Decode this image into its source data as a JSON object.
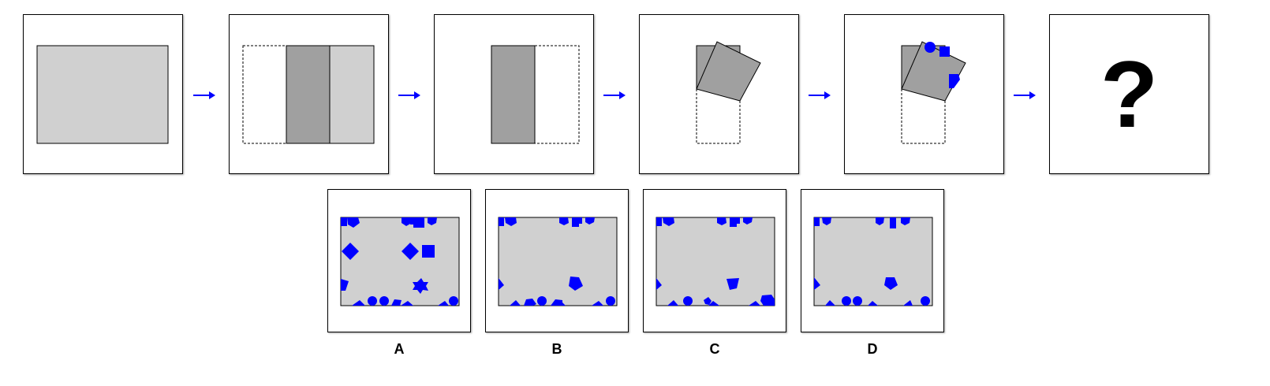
{
  "question_mark": "?",
  "options": [
    {
      "label": "A"
    },
    {
      "label": "B"
    },
    {
      "label": "C"
    },
    {
      "label": "D"
    }
  ],
  "colors": {
    "sheet": "#d0d0d0",
    "folded": "#a0a0a0",
    "punch": "#0000ff",
    "arrow": "#0000ff"
  }
}
